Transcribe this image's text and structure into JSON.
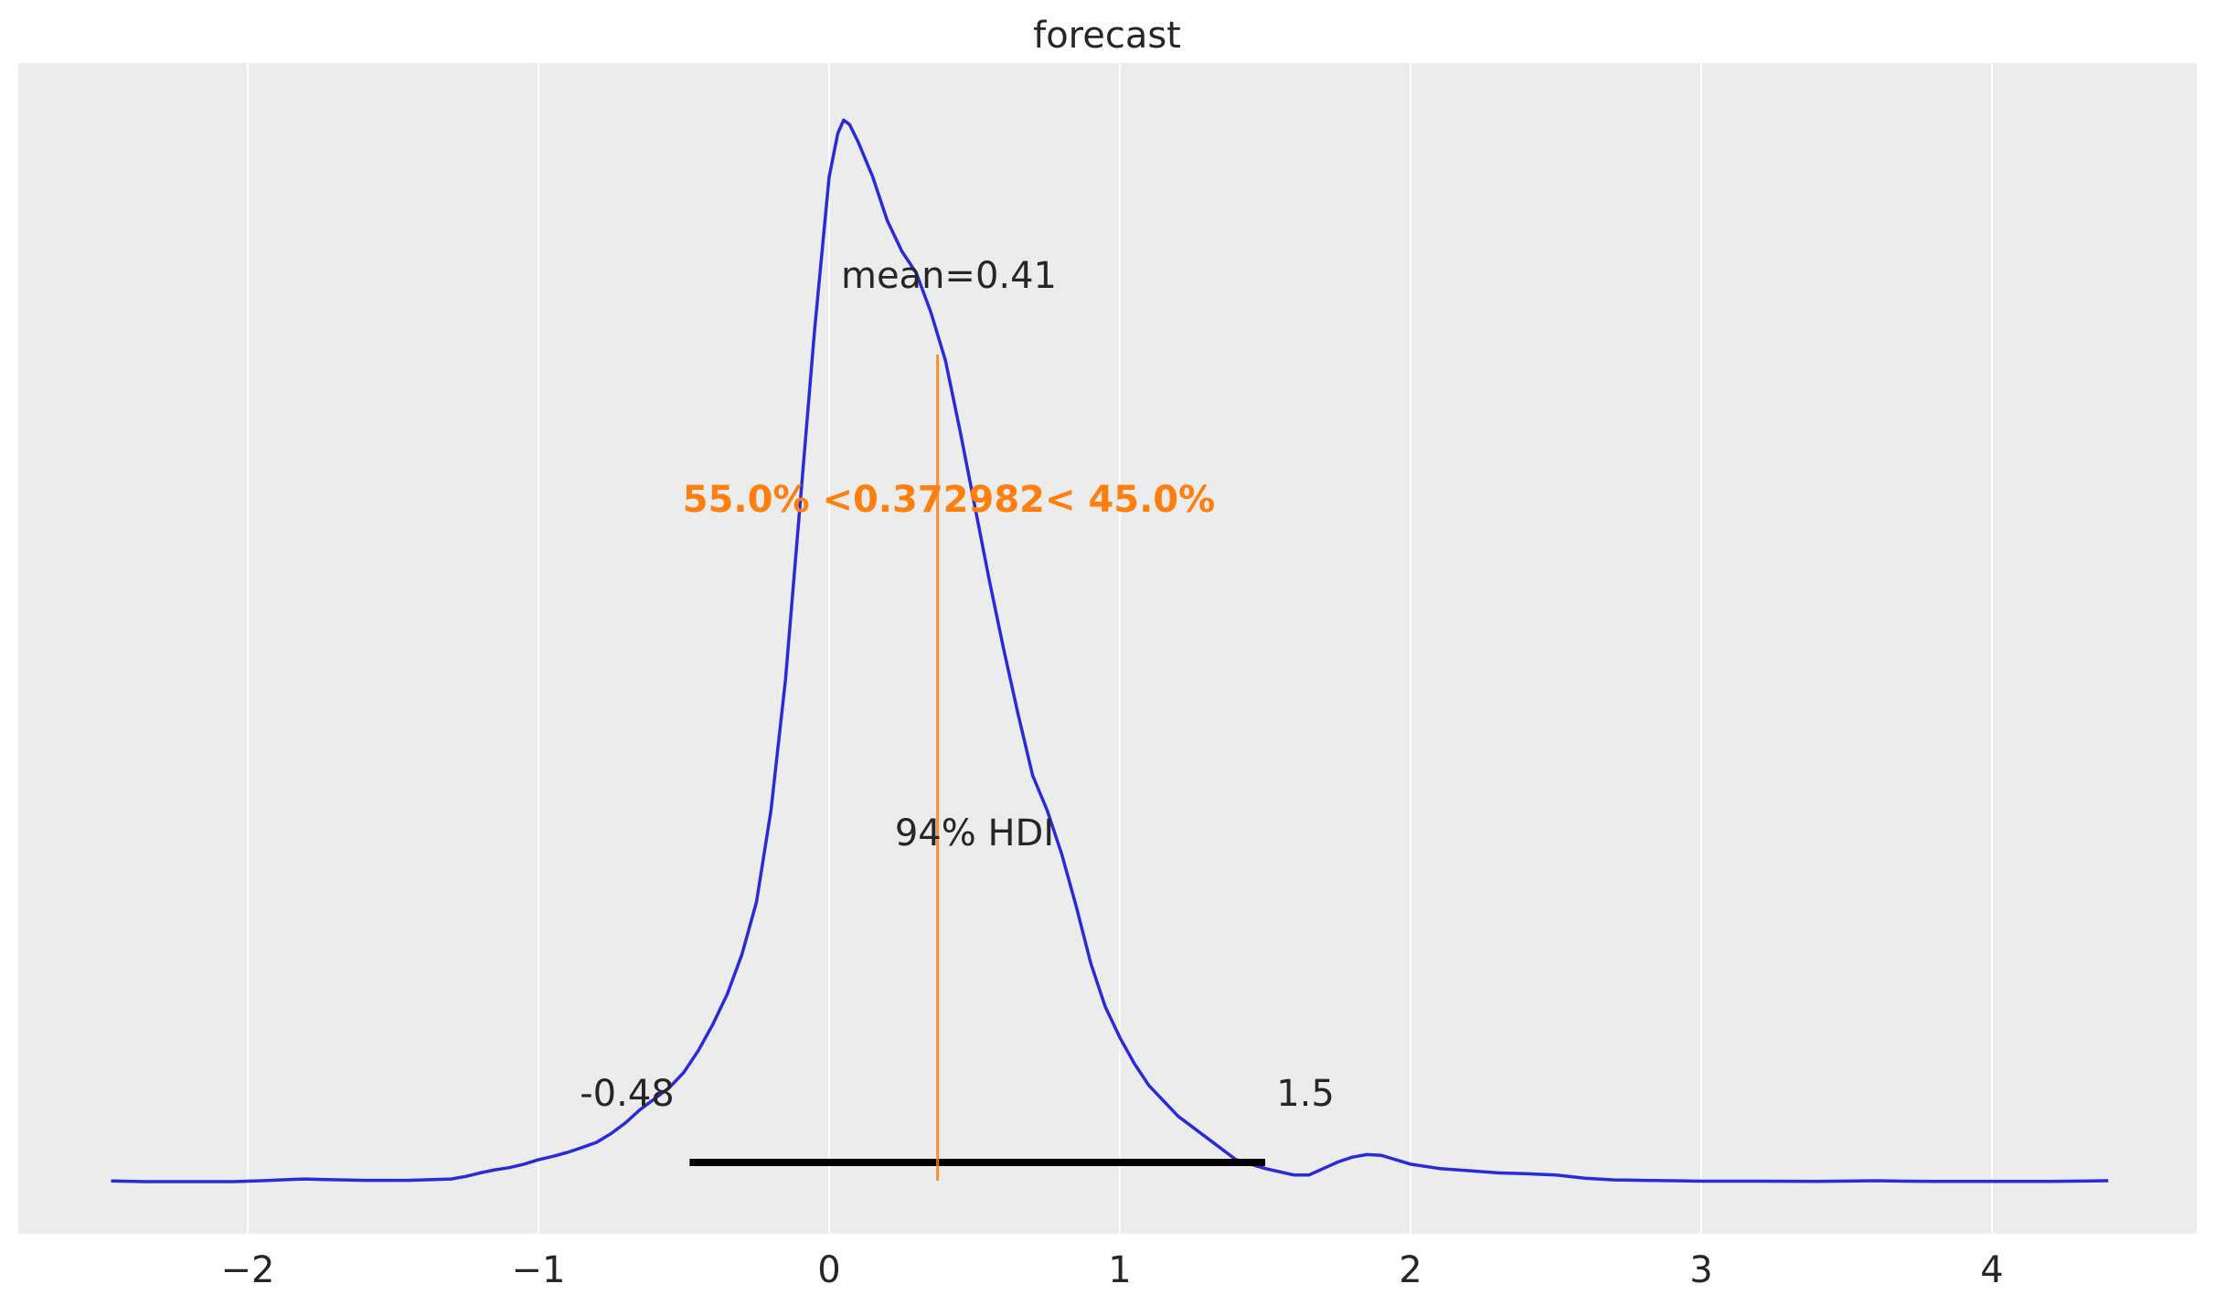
{
  "chart_data": {
    "type": "line",
    "title": "forecast",
    "xlabel": "",
    "ylabel": "",
    "xlim": [
      -2.6,
      4.6
    ],
    "xticks": [
      -2,
      -1,
      0,
      1,
      2,
      3,
      4
    ],
    "xtick_labels": [
      "−2",
      "−1",
      "0",
      "1",
      "2",
      "3",
      "4"
    ],
    "grid": true,
    "series": [
      {
        "color": "#2a2ad8",
        "x": [
          -2.47,
          -2.35,
          -2.2,
          -2.05,
          -1.95,
          -1.85,
          -1.8,
          -1.75,
          -1.6,
          -1.45,
          -1.3,
          -1.25,
          -1.2,
          -1.15,
          -1.1,
          -1.05,
          -1.0,
          -0.95,
          -0.9,
          -0.85,
          -0.8,
          -0.75,
          -0.7,
          -0.65,
          -0.6,
          -0.55,
          -0.5,
          -0.45,
          -0.4,
          -0.35,
          -0.3,
          -0.25,
          -0.2,
          -0.15,
          -0.1,
          -0.05,
          0.0,
          0.03,
          0.05,
          0.07,
          0.1,
          0.15,
          0.2,
          0.25,
          0.3,
          0.35,
          0.4,
          0.45,
          0.5,
          0.55,
          0.6,
          0.65,
          0.7,
          0.75,
          0.8,
          0.85,
          0.9,
          0.95,
          1.0,
          1.05,
          1.1,
          1.2,
          1.3,
          1.4,
          1.5,
          1.6,
          1.65,
          1.7,
          1.75,
          1.8,
          1.85,
          1.9,
          1.95,
          2.0,
          2.1,
          2.2,
          2.3,
          2.4,
          2.5,
          2.6,
          2.7,
          2.8,
          2.9,
          3.0,
          3.2,
          3.4,
          3.6,
          3.7,
          3.8,
          4.0,
          4.2,
          4.4
        ],
        "y": [
          0.0015,
          0.0,
          0.0,
          0.0,
          0.002,
          0.005,
          0.006,
          0.005,
          0.003,
          0.003,
          0.006,
          0.012,
          0.02,
          0.027,
          0.032,
          0.04,
          0.05,
          0.058,
          0.067,
          0.078,
          0.09,
          0.11,
          0.135,
          0.165,
          0.19,
          0.215,
          0.25,
          0.3,
          0.36,
          0.43,
          0.52,
          0.64,
          0.85,
          1.15,
          1.55,
          1.95,
          2.3,
          2.4,
          2.43,
          2.42,
          2.38,
          2.3,
          2.2,
          2.13,
          2.08,
          1.99,
          1.88,
          1.72,
          1.55,
          1.38,
          1.22,
          1.07,
          0.93,
          0.85,
          0.75,
          0.63,
          0.5,
          0.4,
          0.33,
          0.27,
          0.22,
          0.15,
          0.1,
          0.05,
          0.03,
          0.015,
          0.015,
          0.03,
          0.045,
          0.056,
          0.062,
          0.06,
          0.05,
          0.04,
          0.03,
          0.025,
          0.02,
          0.018,
          0.015,
          0.008,
          0.004,
          0.003,
          0.002,
          0.001,
          0.001,
          0.0005,
          0.002,
          0.001,
          0.0005,
          0.0005,
          0.0005,
          0.002
        ]
      }
    ],
    "ylim": [
      -0.12,
      2.6
    ],
    "annotations": {
      "mean_label": "mean=0.41",
      "ref_value": 0.372982,
      "ref_label": "55.0% <0.372982< 45.0%",
      "ref_color": "#ff7f0e",
      "hdi_label": "94% HDI",
      "hdi_low": -0.48,
      "hdi_high": 1.5,
      "hdi_low_label": "-0.48",
      "hdi_high_label": "1.5"
    },
    "colors": {
      "background": "#ececec",
      "grid": "#ffffff",
      "hdi_bar": "#000000",
      "text": "#262626"
    }
  }
}
